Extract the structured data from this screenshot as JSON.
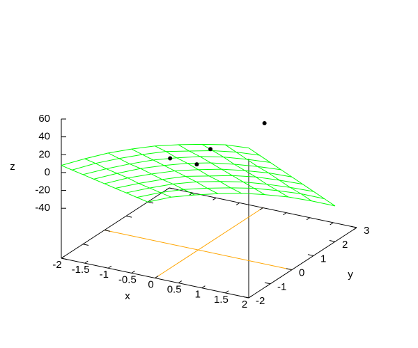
{
  "chart_data": {
    "type": "surface3d",
    "xlabel": "x",
    "ylabel": "y",
    "zlabel": "z",
    "xlim": [
      -2,
      2
    ],
    "ylim": [
      -2,
      3
    ],
    "zlim": [
      -40,
      60
    ],
    "xticks": [
      -2,
      -1.5,
      -1,
      -0.5,
      0,
      0.5,
      1,
      1.5,
      2
    ],
    "yticks": [
      -2,
      -1,
      0,
      1,
      2,
      3
    ],
    "zticks": [
      -40,
      -20,
      0,
      20,
      40,
      60
    ],
    "zero_axes": true,
    "zero_axis_color": "#ffa500",
    "surface": {
      "color": "#00ff00",
      "x": [
        -2,
        -1.5,
        -1,
        -0.5,
        0,
        0.5,
        1,
        1.5,
        2
      ],
      "y": [
        -2,
        -1.5,
        -1,
        -0.5,
        0,
        0.5,
        1,
        1.5,
        2
      ],
      "z": [
        [
          8,
          21,
          33,
          43,
          52,
          59,
          65,
          70,
          72
        ],
        [
          -5,
          8,
          19,
          29,
          38,
          44,
          50,
          54,
          56
        ],
        [
          -18,
          -6,
          5,
          15,
          23,
          30,
          35,
          38,
          40
        ],
        [
          -31,
          -19,
          -8,
          1,
          9,
          15,
          19,
          22,
          24
        ],
        [
          -44,
          -32,
          -22,
          -13,
          -6,
          0,
          4,
          7,
          8
        ],
        [
          -57,
          -46,
          -36,
          -27,
          -21,
          -15,
          -11,
          -9,
          -8
        ],
        [
          -70,
          -59,
          -49,
          -41,
          -35,
          -30,
          -27,
          -25,
          -24
        ],
        [
          -83,
          -72,
          -63,
          -56,
          -50,
          -45,
          -42,
          -40,
          -40
        ],
        [
          -96,
          -85,
          -77,
          -70,
          -64,
          -60,
          -57,
          -56,
          -56
        ]
      ]
    },
    "points": {
      "color": "#000000",
      "x": [
        1,
        -0.2,
        -0.6,
        0.2
      ],
      "y": [
        0.9,
        1,
        0,
        -0.5
      ],
      "z": [
        43,
        -1,
        0,
        10
      ]
    }
  }
}
